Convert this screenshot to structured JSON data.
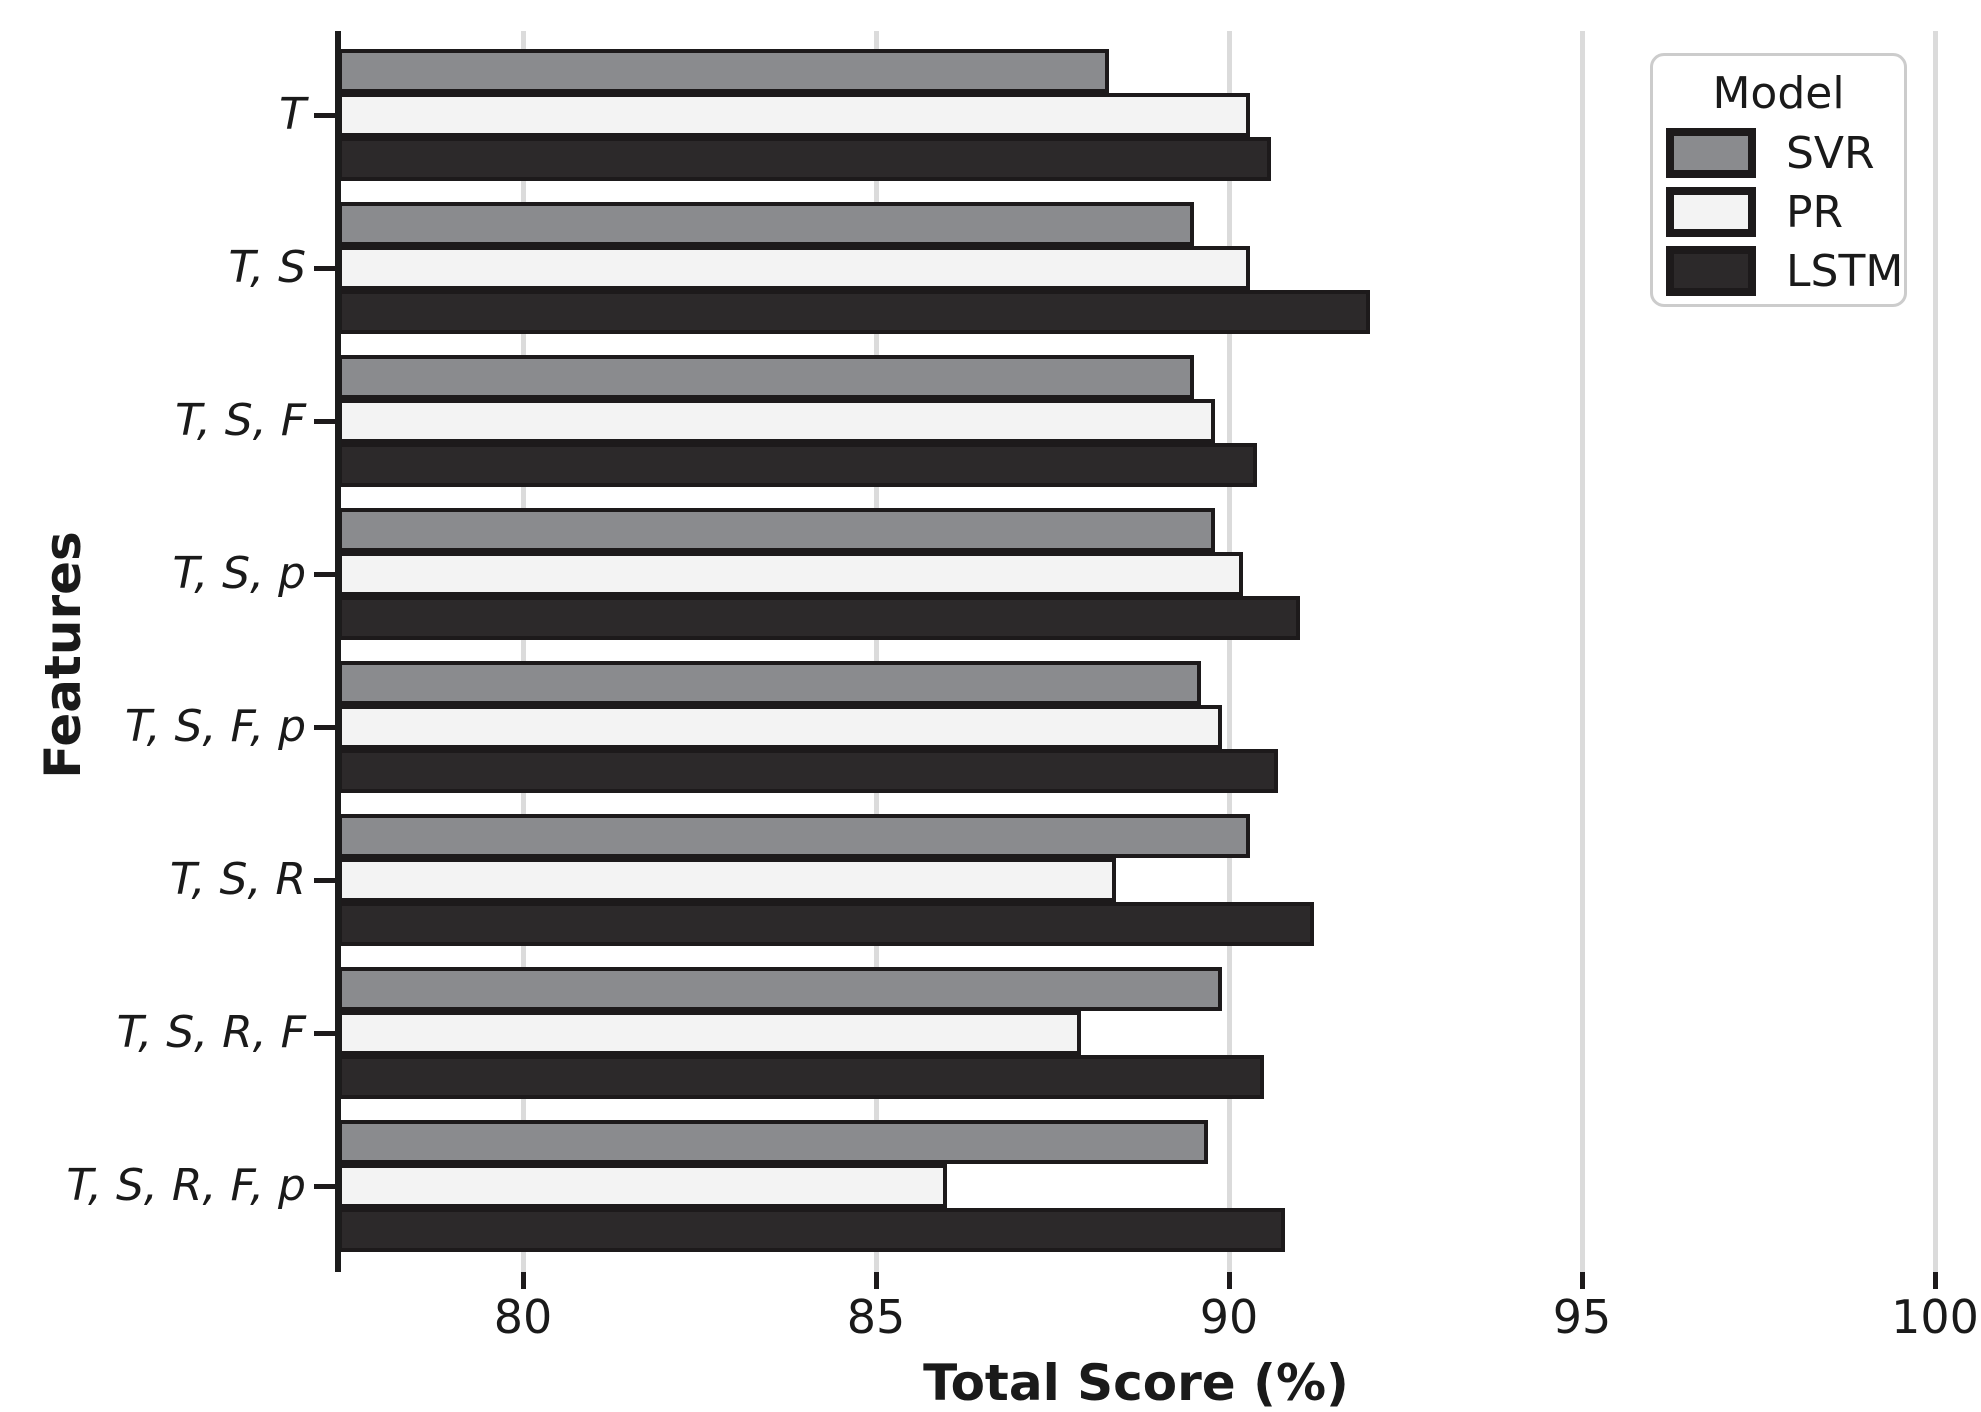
{
  "chart_data": {
    "type": "bar",
    "orientation": "horizontal",
    "xlabel": "Total Score (%)",
    "ylabel": "Features",
    "categories": [
      "T",
      "T, S",
      "T, S, F",
      "T, S, p",
      "T, S, F, p",
      "T, S, R",
      "T, S, R, F",
      "T, S, R, F, p"
    ],
    "series": [
      {
        "name": "SVR",
        "color": "#8a8b8e",
        "values": [
          88.3,
          89.5,
          89.5,
          89.8,
          89.6,
          90.3,
          89.9,
          89.7
        ]
      },
      {
        "name": "PR",
        "color": "#f3f3f3",
        "values": [
          90.3,
          90.3,
          89.8,
          90.2,
          89.9,
          88.4,
          87.9,
          86.0
        ]
      },
      {
        "name": "LSTM",
        "color": "#2c292a",
        "values": [
          90.6,
          92.0,
          90.4,
          91.0,
          90.7,
          91.2,
          90.5,
          90.8
        ]
      }
    ],
    "x_ticks": [
      "80",
      "85",
      "90",
      "95",
      "100"
    ],
    "x_tick_values": [
      80,
      85,
      90,
      95,
      100
    ],
    "xlim": [
      77.4,
      100.65
    ],
    "grid": "vertical-gridlines",
    "bar_edge_color": "#1d1a1b",
    "legend": {
      "title": "Model",
      "entries": [
        "SVR",
        "PR",
        "LSTM"
      ],
      "position": "upper-right"
    }
  }
}
